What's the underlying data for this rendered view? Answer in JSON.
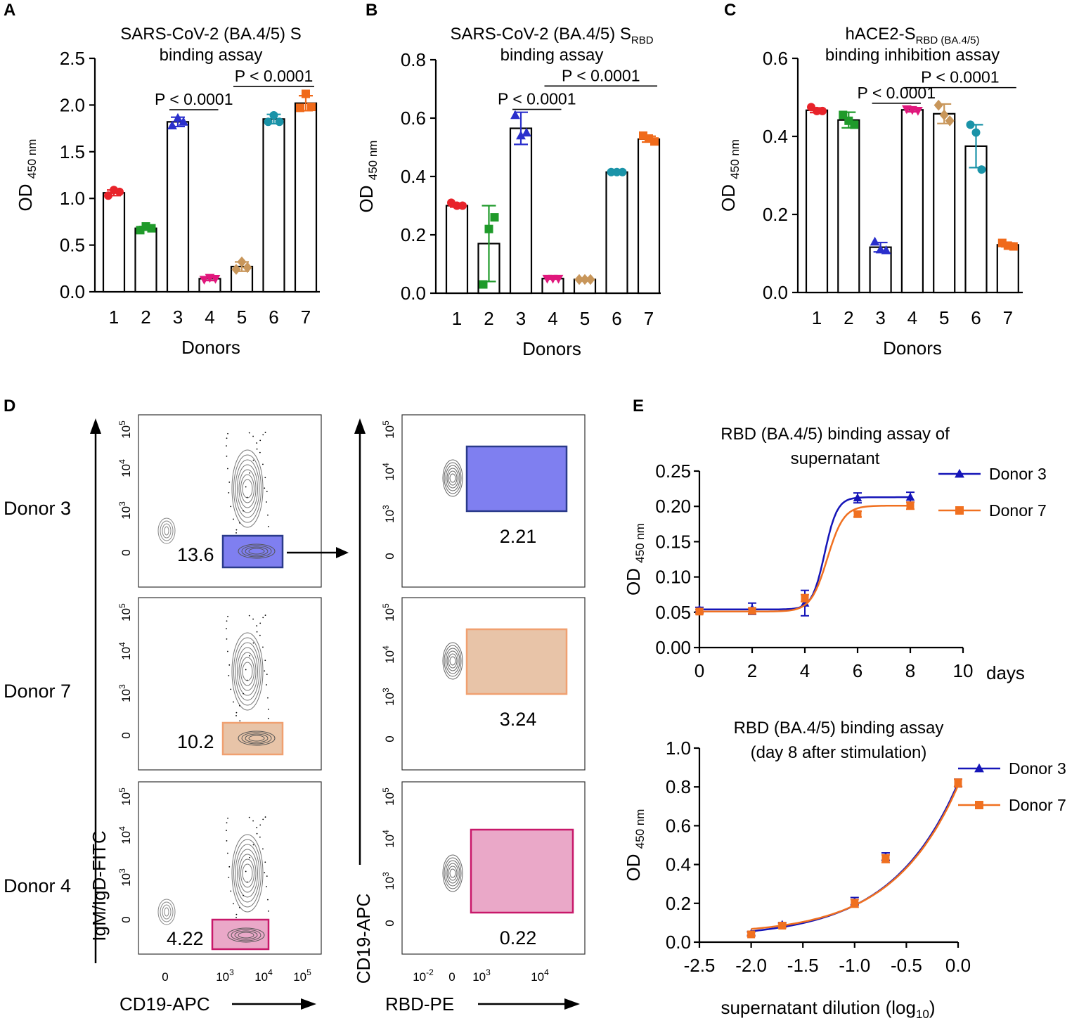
{
  "chart_data": [
    {
      "panel": "A",
      "type": "bar",
      "title": "SARS-CoV-2 (BA.4/5) S",
      "title_line2": "binding assay",
      "ylabel": "OD",
      "ylabel_sub": "450 nm",
      "xlabel": "Donors",
      "categories": [
        "1",
        "2",
        "3",
        "4",
        "5",
        "6",
        "7"
      ],
      "values": [
        1.06,
        0.68,
        1.82,
        0.14,
        0.27,
        1.85,
        2.02
      ],
      "errors": [
        0.03,
        0.02,
        0.05,
        0.02,
        0.05,
        0.05,
        0.08
      ],
      "points": [
        [
          1.03,
          1.09,
          1.07
        ],
        [
          0.66,
          0.7,
          0.68
        ],
        [
          1.78,
          1.86,
          1.82
        ],
        [
          0.13,
          0.15,
          0.14
        ],
        [
          0.24,
          0.32,
          0.26
        ],
        [
          1.82,
          1.89,
          1.82
        ],
        [
          1.97,
          2.12,
          1.98
        ]
      ],
      "colors": [
        "#e8232a",
        "#1f9a2a",
        "#2a2fcc",
        "#e0177c",
        "#c8965a",
        "#1a93a8",
        "#f06a1a"
      ],
      "markers": [
        "circle",
        "square",
        "triangle",
        "triangle-down",
        "diamond",
        "circle",
        "square"
      ],
      "ylim": [
        0,
        2.5
      ],
      "yticks": [
        "0.0",
        "0.5",
        "1.0",
        "1.5",
        "2.0",
        "2.5"
      ],
      "comparisons": [
        {
          "label": "P < 0.0001",
          "from": 3,
          "to": 4,
          "y": 1.95
        },
        {
          "label": "P < 0.0001",
          "from": 5,
          "to": 7,
          "y": 2.2
        }
      ]
    },
    {
      "panel": "B",
      "type": "bar",
      "title": "SARS-CoV-2 (BA.4/5) S",
      "title_sub": "RBD",
      "title_line2": "binding assay",
      "ylabel": "OD",
      "ylabel_sub": "450 nm",
      "xlabel": "Donors",
      "categories": [
        "1",
        "2",
        "3",
        "4",
        "5",
        "6",
        "7"
      ],
      "values": [
        0.3,
        0.17,
        0.565,
        0.05,
        0.047,
        0.415,
        0.528
      ],
      "errors": [
        0.005,
        0.13,
        0.055,
        0.002,
        0.002,
        0.005,
        0.01
      ],
      "points": [
        [
          0.31,
          0.3,
          0.3
        ],
        [
          0.03,
          0.22,
          0.26
        ],
        [
          0.61,
          0.54,
          0.55
        ],
        [
          0.05,
          0.05,
          0.05
        ],
        [
          0.047,
          0.047,
          0.047
        ],
        [
          0.415,
          0.415,
          0.415
        ],
        [
          0.54,
          0.53,
          0.52
        ]
      ],
      "colors": [
        "#e8232a",
        "#1f9a2a",
        "#2a2fcc",
        "#e0177c",
        "#c8965a",
        "#1a93a8",
        "#f06a1a"
      ],
      "markers": [
        "circle",
        "square",
        "triangle",
        "triangle-down",
        "diamond",
        "circle",
        "square"
      ],
      "ylim": [
        0,
        0.8
      ],
      "yticks": [
        "0.0",
        "0.2",
        "0.4",
        "0.6",
        "0.8"
      ],
      "comparisons": [
        {
          "label": "P < 0.0001",
          "from": 3,
          "to": 4,
          "y": 0.63
        },
        {
          "label": "P < 0.0001",
          "from": 4,
          "to": 7,
          "y": 0.71
        }
      ]
    },
    {
      "panel": "C",
      "type": "bar",
      "title": "hACE2-S",
      "title_sub": "RBD (BA.4/5)",
      "title_line2": "binding inhibition assay",
      "ylabel": "OD",
      "ylabel_sub": "450 nm",
      "xlabel": "Donors",
      "categories": [
        "1",
        "2",
        "3",
        "4",
        "5",
        "6",
        "7"
      ],
      "values": [
        0.467,
        0.442,
        0.116,
        0.468,
        0.458,
        0.375,
        0.122
      ],
      "errors": [
        0.006,
        0.02,
        0.012,
        0.005,
        0.025,
        0.055,
        0.005
      ],
      "points": [
        [
          0.475,
          0.465,
          0.465
        ],
        [
          0.455,
          0.44,
          0.43
        ],
        [
          0.13,
          0.11,
          0.108
        ],
        [
          0.47,
          0.468,
          0.466
        ],
        [
          0.48,
          0.455,
          0.44
        ],
        [
          0.43,
          0.41,
          0.315
        ],
        [
          0.127,
          0.12,
          0.118
        ]
      ],
      "colors": [
        "#e8232a",
        "#1f9a2a",
        "#2a2fcc",
        "#e0177c",
        "#c8965a",
        "#1a93a8",
        "#f06a1a"
      ],
      "markers": [
        "circle",
        "square",
        "triangle",
        "triangle-down",
        "diamond",
        "circle",
        "square"
      ],
      "ylim": [
        0,
        0.6
      ],
      "yticks": [
        "0.0",
        "0.2",
        "0.4",
        "0.6"
      ],
      "comparisons": [
        {
          "label": "P < 0.0001",
          "from": 3,
          "to": 4,
          "y": 0.485
        },
        {
          "label": "P < 0.0001",
          "from": 4,
          "to": 7,
          "y": 0.525
        }
      ]
    },
    {
      "panel": "E-top",
      "type": "line",
      "title": "RBD (BA.4/5) binding  assay of",
      "title_line2": "supernatant",
      "ylabel": "OD",
      "ylabel_sub": "450 nm",
      "xlabel": "days",
      "x": [
        0,
        2,
        4,
        6,
        8
      ],
      "series": [
        {
          "name": "Donor 3",
          "values": [
            0.054,
            0.055,
            0.063,
            0.212,
            0.213
          ],
          "errors": [
            0.003,
            0.008,
            0.018,
            0.007,
            0.007
          ],
          "color": "#1515b8",
          "marker": "triangle"
        },
        {
          "name": "Donor 7",
          "values": [
            0.051,
            0.052,
            0.07,
            0.189,
            0.201
          ],
          "errors": [
            0.003,
            0.004,
            0.005,
            0.004,
            0.005
          ],
          "color": "#f07020",
          "marker": "square"
        }
      ],
      "xlim": [
        0,
        10
      ],
      "ylim": [
        0,
        0.25
      ],
      "xticks": [
        "0",
        "2",
        "4",
        "6",
        "8",
        "10"
      ],
      "yticks": [
        "0.00",
        "0.05",
        "0.10",
        "0.15",
        "0.20",
        "0.25"
      ]
    },
    {
      "panel": "E-bottom",
      "type": "line",
      "title": "RBD (BA.4/5) binding  assay",
      "title_line2": "(day 8 after stimulation)",
      "ylabel": "OD",
      "ylabel_sub": "450 nm",
      "xlabel": "supernatant dilution (log",
      "xlabel_sub": "10",
      "xlabel_end": ")",
      "x": [
        -2.0,
        -1.7,
        -1.0,
        -0.7,
        0.0
      ],
      "series": [
        {
          "name": "Donor 3",
          "values": [
            0.045,
            0.09,
            0.21,
            0.44,
            0.82
          ],
          "errors": [
            0.01,
            0.01,
            0.02,
            0.02,
            0.02
          ],
          "color": "#1515b8",
          "marker": "triangle"
        },
        {
          "name": "Donor 7",
          "values": [
            0.04,
            0.085,
            0.2,
            0.43,
            0.82
          ],
          "errors": [
            0.01,
            0.01,
            0.02,
            0.02,
            0.02
          ],
          "color": "#f07020",
          "marker": "square"
        }
      ],
      "xlim": [
        -2.5,
        0
      ],
      "ylim": [
        0,
        1.0
      ],
      "xticks": [
        "-2.5",
        "-2.0",
        "-1.5",
        "-1.0",
        "-0.5",
        "0.0"
      ],
      "yticks": [
        "0.0",
        "0.2",
        "0.4",
        "0.6",
        "0.8",
        "1.0"
      ]
    }
  ],
  "panels": {
    "A": "A",
    "B": "B",
    "C": "C",
    "D": "D",
    "E": "E"
  },
  "facs": {
    "left_ylabel": "IgM/IgD-FITC",
    "left_xlabel": "CD19-APC",
    "right_ylabel": "CD19-APC",
    "right_xlabel": "RBD-PE",
    "left_yticks": [
      "0",
      "10",
      "10",
      "10"
    ],
    "right_yticks": [
      "0",
      "10",
      "10",
      "10"
    ],
    "left_xticks": [
      "0",
      "10",
      "10",
      "10"
    ],
    "right_xticks": [
      "10",
      "0",
      "10",
      "10"
    ],
    "rows": [
      {
        "donor": "Donor 3",
        "gate_left": "13.6",
        "gate_right": "2.21",
        "color": "#7f7ff0",
        "border": "#2a3a8a"
      },
      {
        "donor": "Donor 7",
        "gate_left": "10.2",
        "gate_right": "3.24",
        "color": "#e8c4a8",
        "border": "#f0a070"
      },
      {
        "donor": "Donor 4",
        "gate_left": "4.22",
        "gate_right": "0.22",
        "color": "#eaa8c8",
        "border": "#c8186a"
      }
    ]
  }
}
